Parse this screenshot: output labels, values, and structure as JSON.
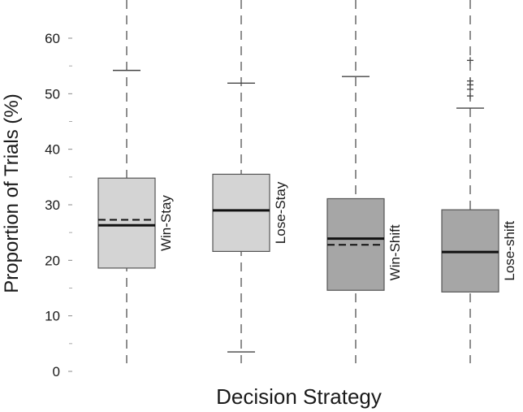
{
  "chart_data": {
    "type": "boxplot",
    "title": "",
    "xlabel": "Decision Strategy",
    "ylabel": "Proportion of Trials (%)",
    "ylim": [
      0,
      60
    ],
    "yticks": [
      0,
      10,
      20,
      30,
      40,
      50,
      60
    ],
    "grid": false,
    "legend": "none",
    "categories": [
      "Win-Stay",
      "Lose-Stay",
      "Win-Shift",
      "Lose-shift"
    ],
    "series": [
      {
        "name": "Win-Stay",
        "whisker_low": 1.5,
        "q1": 18.6,
        "median": 26.3,
        "mean": 27.3,
        "q3": 34.8,
        "whisker_high": 54.2,
        "outliers": [],
        "fill": "#d4d4d4"
      },
      {
        "name": "Lose-Stay",
        "whisker_low": 3.5,
        "q1": 21.6,
        "median": 29.0,
        "q3": 35.5,
        "whisker_high": 51.9,
        "outliers": [],
        "fill": "#d4d4d4"
      },
      {
        "name": "Win-Shift",
        "whisker_low": 1.5,
        "q1": 14.6,
        "median": 23.9,
        "mean": 22.8,
        "q3": 31.1,
        "whisker_high": 53.1,
        "outliers": [],
        "fill": "#a6a6a6"
      },
      {
        "name": "Lose-shift",
        "whisker_low": 1.5,
        "q1": 14.3,
        "median": 21.5,
        "q3": 29.1,
        "whisker_high": 47.4,
        "outliers": [
          49.6,
          50.8,
          51.6,
          52.3,
          56.0
        ],
        "fill": "#a6a6a6"
      }
    ]
  }
}
